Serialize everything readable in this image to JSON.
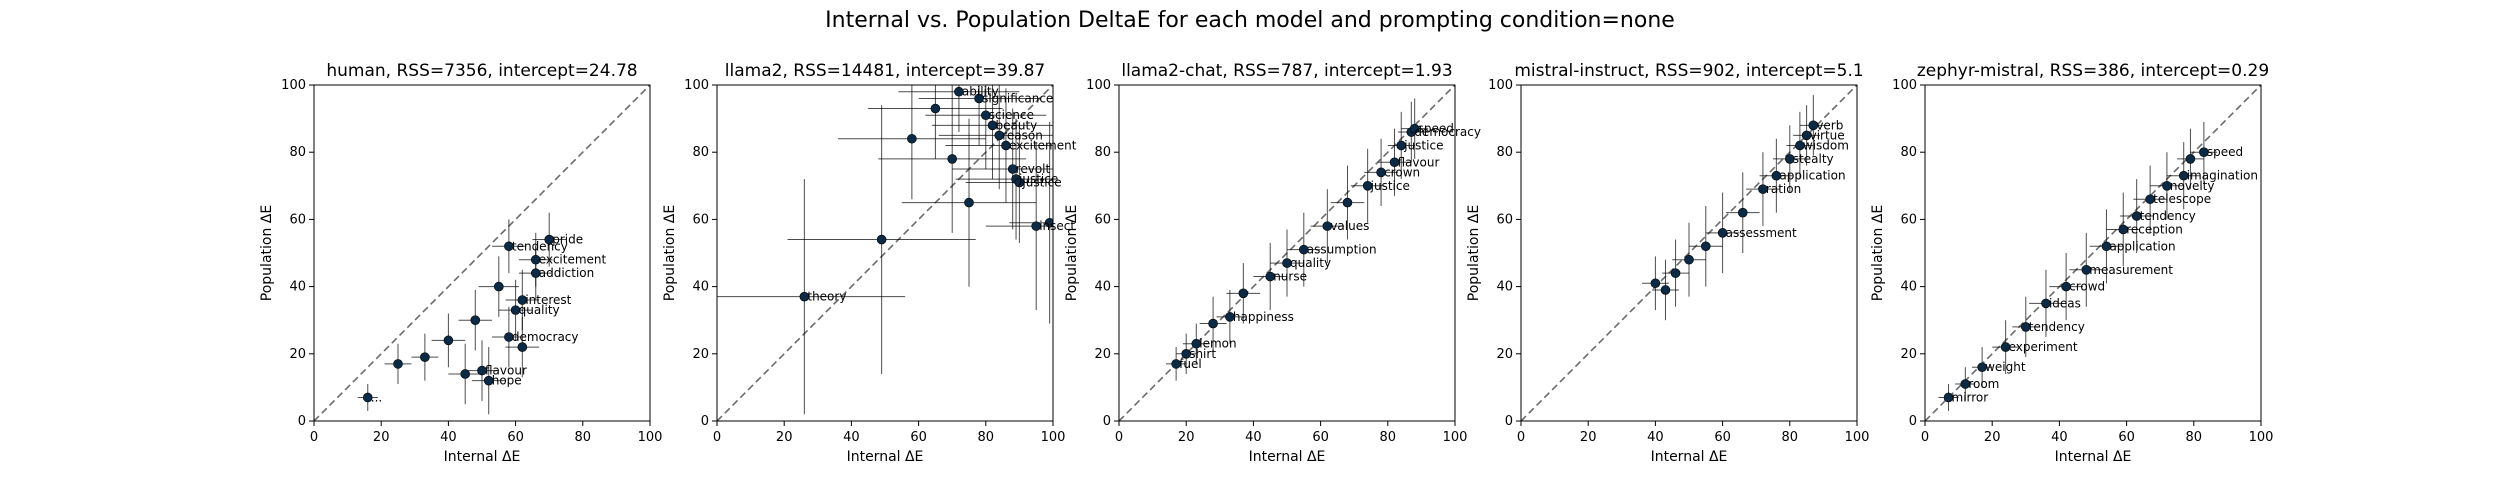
{
  "suptitle": "Internal vs. Population DeltaE for each model and prompting condition=none",
  "chart_data": [
    {
      "type": "scatter",
      "title": "human, RSS=7356, intercept=24.78",
      "xlabel": "Internal ΔE",
      "ylabel": "Population ΔE",
      "xlim": [
        0,
        100
      ],
      "ylim": [
        0,
        100
      ],
      "xticks": [
        0,
        20,
        40,
        60,
        80,
        100
      ],
      "yticks": [
        0,
        20,
        40,
        60,
        80,
        100
      ],
      "diagonal": true,
      "grid": false,
      "points": [
        {
          "x": 16,
          "y": 7,
          "ex": 3,
          "ey": 4,
          "label": "..."
        },
        {
          "x": 25,
          "y": 17,
          "ex": 4,
          "ey": 6,
          "label": ""
        },
        {
          "x": 33,
          "y": 19,
          "ex": 4,
          "ey": 7,
          "label": ""
        },
        {
          "x": 40,
          "y": 24,
          "ex": 5,
          "ey": 8,
          "label": ""
        },
        {
          "x": 45,
          "y": 14,
          "ex": 5,
          "ey": 9,
          "label": ""
        },
        {
          "x": 48,
          "y": 30,
          "ex": 5,
          "ey": 9,
          "label": ""
        },
        {
          "x": 52,
          "y": 12,
          "ex": 5,
          "ey": 10,
          "label": "hope"
        },
        {
          "x": 55,
          "y": 40,
          "ex": 6,
          "ey": 9,
          "label": ""
        },
        {
          "x": 58,
          "y": 52,
          "ex": 5,
          "ey": 8,
          "label": "tendency"
        },
        {
          "x": 70,
          "y": 54,
          "ex": 5,
          "ey": 8,
          "label": "pride"
        },
        {
          "x": 66,
          "y": 48,
          "ex": 5,
          "ey": 8,
          "label": "excitement"
        },
        {
          "x": 66,
          "y": 44,
          "ex": 5,
          "ey": 8,
          "label": "addiction"
        },
        {
          "x": 62,
          "y": 36,
          "ex": 5,
          "ey": 9,
          "label": "interest"
        },
        {
          "x": 58,
          "y": 25,
          "ex": 5,
          "ey": 9,
          "label": "democracy"
        },
        {
          "x": 62,
          "y": 22,
          "ex": 5,
          "ey": 9,
          "label": ""
        },
        {
          "x": 50,
          "y": 15,
          "ex": 5,
          "ey": 9,
          "label": "flavour"
        },
        {
          "x": 60,
          "y": 33,
          "ex": 5,
          "ey": 9,
          "label": "quality"
        }
      ]
    },
    {
      "type": "scatter",
      "title": "llama2, RSS=14481, intercept=39.87",
      "xlabel": "Internal ΔE",
      "ylabel": "Population ΔE",
      "xlim": [
        0,
        100
      ],
      "ylim": [
        0,
        100
      ],
      "xticks": [
        0,
        20,
        40,
        60,
        80,
        100
      ],
      "yticks": [
        0,
        20,
        40,
        60,
        80,
        100
      ],
      "diagonal": true,
      "grid": false,
      "points": [
        {
          "x": 26,
          "y": 37,
          "ex": 30,
          "ey": 35,
          "label": "theory"
        },
        {
          "x": 49,
          "y": 54,
          "ex": 28,
          "ey": 40,
          "label": ""
        },
        {
          "x": 58,
          "y": 84,
          "ex": 22,
          "ey": 18,
          "label": ""
        },
        {
          "x": 65,
          "y": 93,
          "ex": 20,
          "ey": 15,
          "label": ""
        },
        {
          "x": 72,
          "y": 98,
          "ex": 18,
          "ey": 12,
          "label": "ability"
        },
        {
          "x": 78,
          "y": 96,
          "ex": 18,
          "ey": 14,
          "label": "significance"
        },
        {
          "x": 80,
          "y": 91,
          "ex": 18,
          "ey": 16,
          "label": "science"
        },
        {
          "x": 82,
          "y": 88,
          "ex": 18,
          "ey": 16,
          "label": "beauty"
        },
        {
          "x": 84,
          "y": 85,
          "ex": 18,
          "ey": 16,
          "label": "reason"
        },
        {
          "x": 86,
          "y": 82,
          "ex": 18,
          "ey": 17,
          "label": "excitement"
        },
        {
          "x": 88,
          "y": 75,
          "ex": 18,
          "ey": 18,
          "label": "revolt"
        },
        {
          "x": 89,
          "y": 72,
          "ex": 18,
          "ey": 18,
          "label": "justice"
        },
        {
          "x": 90,
          "y": 71,
          "ex": 16,
          "ey": 18,
          "label": "justice"
        },
        {
          "x": 95,
          "y": 58,
          "ex": 15,
          "ey": 25,
          "label": "insect"
        },
        {
          "x": 99,
          "y": 59,
          "ex": 12,
          "ey": 30,
          "label": ""
        },
        {
          "x": 75,
          "y": 65,
          "ex": 20,
          "ey": 25,
          "label": ""
        },
        {
          "x": 70,
          "y": 78,
          "ex": 22,
          "ey": 22,
          "label": ""
        }
      ]
    },
    {
      "type": "scatter",
      "title": "llama2-chat, RSS=787, intercept=1.93",
      "xlabel": "Internal ΔE",
      "ylabel": "Population ΔE",
      "xlim": [
        0,
        100
      ],
      "ylim": [
        0,
        100
      ],
      "xticks": [
        0,
        20,
        40,
        60,
        80,
        100
      ],
      "yticks": [
        0,
        20,
        40,
        60,
        80,
        100
      ],
      "diagonal": true,
      "grid": false,
      "points": [
        {
          "x": 17,
          "y": 17,
          "ex": 3,
          "ey": 5,
          "label": "fuel"
        },
        {
          "x": 20,
          "y": 20,
          "ex": 3,
          "ey": 6,
          "label": "shirt"
        },
        {
          "x": 23,
          "y": 23,
          "ex": 4,
          "ey": 6,
          "label": "lemon"
        },
        {
          "x": 28,
          "y": 29,
          "ex": 4,
          "ey": 8,
          "label": ""
        },
        {
          "x": 33,
          "y": 31,
          "ex": 4,
          "ey": 8,
          "label": "happiness"
        },
        {
          "x": 37,
          "y": 38,
          "ex": 5,
          "ey": 9,
          "label": ""
        },
        {
          "x": 45,
          "y": 43,
          "ex": 5,
          "ey": 10,
          "label": "nurse"
        },
        {
          "x": 50,
          "y": 47,
          "ex": 5,
          "ey": 10,
          "label": "quality"
        },
        {
          "x": 55,
          "y": 51,
          "ex": 5,
          "ey": 11,
          "label": "assumption"
        },
        {
          "x": 62,
          "y": 58,
          "ex": 5,
          "ey": 11,
          "label": "values"
        },
        {
          "x": 68,
          "y": 65,
          "ex": 5,
          "ey": 11,
          "label": ""
        },
        {
          "x": 74,
          "y": 70,
          "ex": 5,
          "ey": 11,
          "label": "justice"
        },
        {
          "x": 78,
          "y": 74,
          "ex": 5,
          "ey": 10,
          "label": "crown"
        },
        {
          "x": 82,
          "y": 77,
          "ex": 5,
          "ey": 10,
          "label": "flavour"
        },
        {
          "x": 84,
          "y": 82,
          "ex": 4,
          "ey": 10,
          "label": "justice"
        },
        {
          "x": 87,
          "y": 86,
          "ex": 4,
          "ey": 9,
          "label": "democracy"
        },
        {
          "x": 88,
          "y": 87,
          "ex": 4,
          "ey": 9,
          "label": "speed"
        }
      ]
    },
    {
      "type": "scatter",
      "title": "mistral-instruct, RSS=902, intercept=5.1",
      "xlabel": "Internal ΔE",
      "ylabel": "Population ΔE",
      "xlim": [
        0,
        100
      ],
      "ylim": [
        0,
        100
      ],
      "xticks": [
        0,
        20,
        40,
        60,
        80,
        100
      ],
      "yticks": [
        0,
        20,
        40,
        60,
        80,
        100
      ],
      "diagonal": true,
      "grid": false,
      "points": [
        {
          "x": 40,
          "y": 41,
          "ex": 4,
          "ey": 8,
          "label": ""
        },
        {
          "x": 43,
          "y": 39,
          "ex": 4,
          "ey": 9,
          "label": ""
        },
        {
          "x": 46,
          "y": 44,
          "ex": 4,
          "ey": 10,
          "label": ""
        },
        {
          "x": 50,
          "y": 48,
          "ex": 5,
          "ey": 11,
          "label": ""
        },
        {
          "x": 55,
          "y": 52,
          "ex": 5,
          "ey": 12,
          "label": ""
        },
        {
          "x": 60,
          "y": 56,
          "ex": 5,
          "ey": 12,
          "label": "assessment"
        },
        {
          "x": 66,
          "y": 62,
          "ex": 5,
          "ey": 12,
          "label": ""
        },
        {
          "x": 72,
          "y": 69,
          "ex": 5,
          "ey": 11,
          "label": "ration"
        },
        {
          "x": 76,
          "y": 73,
          "ex": 5,
          "ey": 11,
          "label": "application"
        },
        {
          "x": 80,
          "y": 78,
          "ex": 5,
          "ey": 10,
          "label": "stealty"
        },
        {
          "x": 83,
          "y": 82,
          "ex": 4,
          "ey": 10,
          "label": "wisdom"
        },
        {
          "x": 85,
          "y": 85,
          "ex": 4,
          "ey": 9,
          "label": "virtue"
        },
        {
          "x": 87,
          "y": 88,
          "ex": 4,
          "ey": 9,
          "label": "verb"
        }
      ]
    },
    {
      "type": "scatter",
      "title": "zephyr-mistral, RSS=386, intercept=0.29",
      "xlabel": "Internal ΔE",
      "ylabel": "Population ΔE",
      "xlim": [
        0,
        100
      ],
      "ylim": [
        0,
        100
      ],
      "xticks": [
        0,
        20,
        40,
        60,
        80,
        100
      ],
      "yticks": [
        0,
        20,
        40,
        60,
        80,
        100
      ],
      "diagonal": true,
      "grid": false,
      "points": [
        {
          "x": 7,
          "y": 7,
          "ex": 3,
          "ey": 4,
          "label": "mirror"
        },
        {
          "x": 12,
          "y": 11,
          "ex": 3,
          "ey": 5,
          "label": "room"
        },
        {
          "x": 17,
          "y": 16,
          "ex": 3,
          "ey": 6,
          "label": "weight"
        },
        {
          "x": 24,
          "y": 22,
          "ex": 4,
          "ey": 8,
          "label": "experiment"
        },
        {
          "x": 30,
          "y": 28,
          "ex": 4,
          "ey": 9,
          "label": "tendency"
        },
        {
          "x": 36,
          "y": 35,
          "ex": 5,
          "ey": 10,
          "label": "ideas"
        },
        {
          "x": 42,
          "y": 40,
          "ex": 5,
          "ey": 10,
          "label": "crowd"
        },
        {
          "x": 48,
          "y": 45,
          "ex": 5,
          "ey": 11,
          "label": "measurement"
        },
        {
          "x": 54,
          "y": 52,
          "ex": 5,
          "ey": 11,
          "label": "application"
        },
        {
          "x": 59,
          "y": 57,
          "ex": 5,
          "ey": 11,
          "label": "reception"
        },
        {
          "x": 63,
          "y": 61,
          "ex": 5,
          "ey": 11,
          "label": "tendency"
        },
        {
          "x": 67,
          "y": 66,
          "ex": 5,
          "ey": 10,
          "label": "telescope"
        },
        {
          "x": 72,
          "y": 70,
          "ex": 5,
          "ey": 10,
          "label": "novelty"
        },
        {
          "x": 77,
          "y": 73,
          "ex": 5,
          "ey": 10,
          "label": "imagination"
        },
        {
          "x": 79,
          "y": 78,
          "ex": 4,
          "ey": 9,
          "label": ""
        },
        {
          "x": 83,
          "y": 80,
          "ex": 4,
          "ey": 9,
          "label": "speed"
        }
      ]
    }
  ]
}
